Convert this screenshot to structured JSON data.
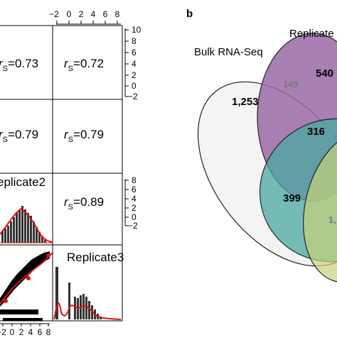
{
  "panel_a": {
    "top_ticks": [
      "−2",
      "0",
      "2",
      "4",
      "6",
      "8"
    ],
    "right_ticks_top": [
      "10",
      "8",
      "6",
      "4",
      "2",
      "0",
      "−2"
    ],
    "right_ticks_mid": [
      "8",
      "6",
      "4",
      "2",
      "0",
      "−2"
    ],
    "bottom_ticks": [
      "−2",
      "0",
      "2",
      "4",
      "6",
      "8"
    ],
    "correlations": [
      {
        "symbol": "r",
        "subscript": "S",
        "value": "=0.73"
      },
      {
        "symbol": "r",
        "subscript": "S",
        "value": "=0.72"
      },
      {
        "symbol": "r",
        "subscript": "S",
        "value": "=0.79"
      },
      {
        "symbol": "r",
        "subscript": "S",
        "value": "=0.79"
      },
      {
        "symbol": "r",
        "subscript": "S",
        "value": "=0.89"
      }
    ],
    "diag_labels": {
      "replicate2": "eplicate2",
      "replicate3": "Replicate3"
    }
  },
  "panel_b": {
    "label": "b",
    "set_labels": {
      "bulk": "Bulk RNA-Seq",
      "replicate": "Replicate"
    },
    "regions": {
      "bulk_only": "1,253",
      "replicate_only": "540",
      "bulk_replicate": "149",
      "center": "316",
      "lower_left": "399",
      "lower_right": "1,"
    },
    "colors": {
      "bulk": "#f2f2f2",
      "replicate": "#9a6aa6",
      "teal": "#4aa8a2",
      "yellow": "#c7d27a",
      "outline": "#222222"
    }
  }
}
